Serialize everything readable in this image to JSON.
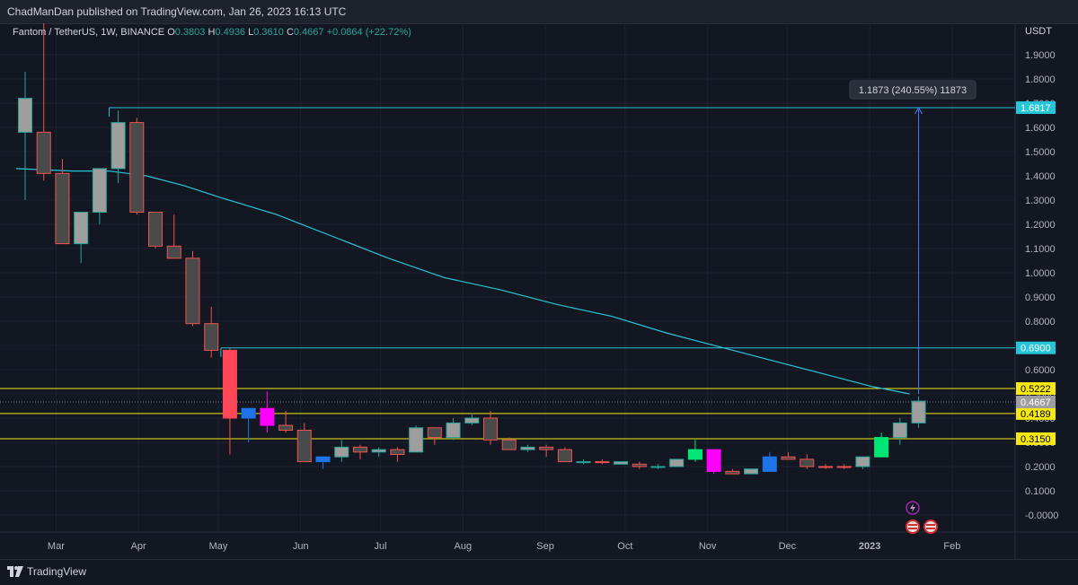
{
  "header": {
    "publish_line": "ChadManDan published on TradingView.com, Jan 26, 2023 16:13 UTC"
  },
  "footer": {
    "brand": "TradingView"
  },
  "colors": {
    "background": "#131722",
    "grid": "#1e222d",
    "up_candle": "#9e9e9e",
    "down_candle": "#555555",
    "ma_line": "#26c6da",
    "level_yellow": "#f5e911",
    "level_cyan": "#26c6da"
  },
  "chart_data": {
    "type": "candlestick",
    "symbol_line": {
      "name": "Fantom / TetherUS, 1W, BINANCE",
      "o_label": "O",
      "o": "0.3803",
      "h_label": "H",
      "h": "0.4936",
      "l_label": "L",
      "l": "0.3610",
      "c_label": "C",
      "c": "0.4667",
      "change": "+0.0864 (+22.72%)"
    },
    "currency": "USDT",
    "y_ticks": [
      "1.9000",
      "1.8000",
      "1.7000",
      "1.6000",
      "1.5000",
      "1.4000",
      "1.3000",
      "1.2000",
      "1.1000",
      "1.0000",
      "0.9000",
      "0.8000",
      "0.7000",
      "0.6000",
      "0.5000",
      "0.4000",
      "0.3000",
      "0.2000",
      "0.1000",
      "-0.0000"
    ],
    "ylim": [
      -0.04,
      2.0
    ],
    "x_ticks": [
      {
        "label": "Mar",
        "x": "2022-03-01"
      },
      {
        "label": "Apr",
        "x": "2022-04-01"
      },
      {
        "label": "May",
        "x": "2022-05-01"
      },
      {
        "label": "Jun",
        "x": "2022-06-01"
      },
      {
        "label": "Jul",
        "x": "2022-07-01"
      },
      {
        "label": "Aug",
        "x": "2022-08-01"
      },
      {
        "label": "Sep",
        "x": "2022-09-01"
      },
      {
        "label": "Oct",
        "x": "2022-10-01"
      },
      {
        "label": "Nov",
        "x": "2022-11-01"
      },
      {
        "label": "Dec",
        "x": "2022-12-01"
      },
      {
        "label": "2023",
        "x": "2023-01-01",
        "bold": true
      },
      {
        "label": "Feb",
        "x": "2023-02-01"
      }
    ],
    "candles": [
      {
        "x": "2022-02-14",
        "o": 1.58,
        "h": 1.83,
        "l": 1.3,
        "c": 1.72,
        "color": "up"
      },
      {
        "x": "2022-02-21",
        "o": 1.58,
        "h": 2.08,
        "l": 1.38,
        "c": 1.41,
        "color": "down"
      },
      {
        "x": "2022-02-28",
        "o": 1.41,
        "h": 1.47,
        "l": 1.12,
        "c": 1.12,
        "color": "down"
      },
      {
        "x": "2022-03-07",
        "o": 1.12,
        "h": 1.25,
        "l": 1.04,
        "c": 1.25,
        "color": "up"
      },
      {
        "x": "2022-03-14",
        "o": 1.25,
        "h": 1.43,
        "l": 1.2,
        "c": 1.43,
        "color": "up"
      },
      {
        "x": "2022-03-21",
        "o": 1.43,
        "h": 1.67,
        "l": 1.37,
        "c": 1.62,
        "color": "up"
      },
      {
        "x": "2022-03-28",
        "o": 1.62,
        "h": 1.64,
        "l": 1.24,
        "c": 1.25,
        "color": "down"
      },
      {
        "x": "2022-04-04",
        "o": 1.25,
        "h": 1.25,
        "l": 1.1,
        "c": 1.11,
        "color": "down"
      },
      {
        "x": "2022-04-11",
        "o": 1.11,
        "h": 1.24,
        "l": 1.06,
        "c": 1.06,
        "color": "down"
      },
      {
        "x": "2022-04-18",
        "o": 1.06,
        "h": 1.09,
        "l": 0.78,
        "c": 0.79,
        "color": "down"
      },
      {
        "x": "2022-04-25",
        "o": 0.79,
        "h": 0.86,
        "l": 0.65,
        "c": 0.68,
        "color": "down"
      },
      {
        "x": "2022-05-02",
        "o": 0.68,
        "h": 0.69,
        "l": 0.25,
        "c": 0.4,
        "color": "red"
      },
      {
        "x": "2022-05-09",
        "o": 0.4,
        "h": 0.44,
        "l": 0.3,
        "c": 0.44,
        "color": "blue"
      },
      {
        "x": "2022-05-16",
        "o": 0.44,
        "h": 0.51,
        "l": 0.34,
        "c": 0.37,
        "color": "magenta"
      },
      {
        "x": "2022-05-23",
        "o": 0.37,
        "h": 0.43,
        "l": 0.34,
        "c": 0.35,
        "color": "down"
      },
      {
        "x": "2022-05-30",
        "o": 0.35,
        "h": 0.38,
        "l": 0.22,
        "c": 0.22,
        "color": "down"
      },
      {
        "x": "2022-06-06",
        "o": 0.22,
        "h": 0.24,
        "l": 0.19,
        "c": 0.24,
        "color": "blue"
      },
      {
        "x": "2022-06-13",
        "o": 0.24,
        "h": 0.31,
        "l": 0.22,
        "c": 0.28,
        "color": "up"
      },
      {
        "x": "2022-06-20",
        "o": 0.28,
        "h": 0.29,
        "l": 0.23,
        "c": 0.26,
        "color": "down"
      },
      {
        "x": "2022-06-27",
        "o": 0.26,
        "h": 0.28,
        "l": 0.24,
        "c": 0.27,
        "color": "up"
      },
      {
        "x": "2022-07-04",
        "o": 0.27,
        "h": 0.28,
        "l": 0.22,
        "c": 0.25,
        "color": "down"
      },
      {
        "x": "2022-07-11",
        "o": 0.26,
        "h": 0.37,
        "l": 0.26,
        "c": 0.36,
        "color": "up"
      },
      {
        "x": "2022-07-18",
        "o": 0.36,
        "h": 0.36,
        "l": 0.29,
        "c": 0.32,
        "color": "down"
      },
      {
        "x": "2022-07-25",
        "o": 0.32,
        "h": 0.4,
        "l": 0.31,
        "c": 0.38,
        "color": "up"
      },
      {
        "x": "2022-08-01",
        "o": 0.38,
        "h": 0.42,
        "l": 0.37,
        "c": 0.4,
        "color": "up"
      },
      {
        "x": "2022-08-08",
        "o": 0.4,
        "h": 0.43,
        "l": 0.29,
        "c": 0.31,
        "color": "down"
      },
      {
        "x": "2022-08-15",
        "o": 0.31,
        "h": 0.32,
        "l": 0.27,
        "c": 0.27,
        "color": "down"
      },
      {
        "x": "2022-08-22",
        "o": 0.27,
        "h": 0.29,
        "l": 0.26,
        "c": 0.28,
        "color": "up"
      },
      {
        "x": "2022-08-29",
        "o": 0.28,
        "h": 0.29,
        "l": 0.24,
        "c": 0.27,
        "color": "down"
      },
      {
        "x": "2022-09-05",
        "o": 0.27,
        "h": 0.28,
        "l": 0.22,
        "c": 0.22,
        "color": "down"
      },
      {
        "x": "2022-09-12",
        "o": 0.22,
        "h": 0.23,
        "l": 0.21,
        "c": 0.22,
        "color": "up"
      },
      {
        "x": "2022-09-19",
        "o": 0.22,
        "h": 0.23,
        "l": 0.21,
        "c": 0.22,
        "color": "down"
      },
      {
        "x": "2022-09-26",
        "o": 0.22,
        "h": 0.22,
        "l": 0.21,
        "c": 0.21,
        "color": "up"
      },
      {
        "x": "2022-10-03",
        "o": 0.21,
        "h": 0.22,
        "l": 0.19,
        "c": 0.2,
        "color": "down"
      },
      {
        "x": "2022-10-10",
        "o": 0.2,
        "h": 0.21,
        "l": 0.19,
        "c": 0.2,
        "color": "up"
      },
      {
        "x": "2022-10-17",
        "o": 0.2,
        "h": 0.23,
        "l": 0.2,
        "c": 0.23,
        "color": "up"
      },
      {
        "x": "2022-10-24",
        "o": 0.23,
        "h": 0.31,
        "l": 0.22,
        "c": 0.27,
        "color": "green"
      },
      {
        "x": "2022-10-31",
        "o": 0.27,
        "h": 0.27,
        "l": 0.17,
        "c": 0.18,
        "color": "magenta"
      },
      {
        "x": "2022-11-07",
        "o": 0.18,
        "h": 0.19,
        "l": 0.17,
        "c": 0.17,
        "color": "down"
      },
      {
        "x": "2022-11-14",
        "o": 0.17,
        "h": 0.19,
        "l": 0.17,
        "c": 0.19,
        "color": "up"
      },
      {
        "x": "2022-11-21",
        "o": 0.18,
        "h": 0.26,
        "l": 0.18,
        "c": 0.24,
        "color": "blue"
      },
      {
        "x": "2022-11-28",
        "o": 0.24,
        "h": 0.26,
        "l": 0.23,
        "c": 0.23,
        "color": "down"
      },
      {
        "x": "2022-12-05",
        "o": 0.23,
        "h": 0.25,
        "l": 0.19,
        "c": 0.2,
        "color": "down"
      },
      {
        "x": "2022-12-12",
        "o": 0.2,
        "h": 0.21,
        "l": 0.19,
        "c": 0.2,
        "color": "down"
      },
      {
        "x": "2022-12-19",
        "o": 0.2,
        "h": 0.21,
        "l": 0.19,
        "c": 0.2,
        "color": "down"
      },
      {
        "x": "2022-12-26",
        "o": 0.2,
        "h": 0.24,
        "l": 0.19,
        "c": 0.24,
        "color": "up"
      },
      {
        "x": "2023-01-02",
        "o": 0.24,
        "h": 0.34,
        "l": 0.24,
        "c": 0.32,
        "color": "green"
      },
      {
        "x": "2023-01-09",
        "o": 0.32,
        "h": 0.4,
        "l": 0.29,
        "c": 0.38,
        "color": "up"
      },
      {
        "x": "2023-01-16",
        "o": 0.38,
        "h": 0.49,
        "l": 0.36,
        "c": 0.47,
        "color": "up"
      }
    ],
    "moving_average": [
      {
        "x": "2022-02-14",
        "y": 1.43
      },
      {
        "x": "2022-03-07",
        "y": 1.42
      },
      {
        "x": "2022-03-21",
        "y": 1.42
      },
      {
        "x": "2022-04-04",
        "y": 1.4
      },
      {
        "x": "2022-04-18",
        "y": 1.36
      },
      {
        "x": "2022-05-02",
        "y": 1.31
      },
      {
        "x": "2022-05-23",
        "y": 1.24
      },
      {
        "x": "2022-06-13",
        "y": 1.15
      },
      {
        "x": "2022-07-04",
        "y": 1.06
      },
      {
        "x": "2022-07-25",
        "y": 0.98
      },
      {
        "x": "2022-08-15",
        "y": 0.93
      },
      {
        "x": "2022-09-05",
        "y": 0.87
      },
      {
        "x": "2022-09-26",
        "y": 0.82
      },
      {
        "x": "2022-10-17",
        "y": 0.75
      },
      {
        "x": "2022-11-07",
        "y": 0.69
      },
      {
        "x": "2022-11-28",
        "y": 0.63
      },
      {
        "x": "2022-12-19",
        "y": 0.57
      },
      {
        "x": "2023-01-02",
        "y": 0.53
      },
      {
        "x": "2023-01-16",
        "y": 0.5
      }
    ],
    "levels": [
      {
        "label": "1.6817",
        "y": 1.6817,
        "style": "cyan",
        "from": "2022-03-21"
      },
      {
        "label": "0.6900",
        "y": 0.69,
        "style": "cyan",
        "from": "2022-05-02"
      },
      {
        "label": "0.5222",
        "y": 0.5222,
        "style": "yellow",
        "from": null
      },
      {
        "label": "0.4189",
        "y": 0.4189,
        "style": "yellow",
        "from": null
      },
      {
        "label": "0.3150",
        "y": 0.315,
        "style": "yellow",
        "from": null
      }
    ],
    "current_price": {
      "label": "0.4667",
      "y": 0.4667
    },
    "measure": {
      "x": "2023-01-16",
      "from": 0.5,
      "to": 1.6817,
      "label": "1.1873 (240.55%) 11873"
    }
  }
}
